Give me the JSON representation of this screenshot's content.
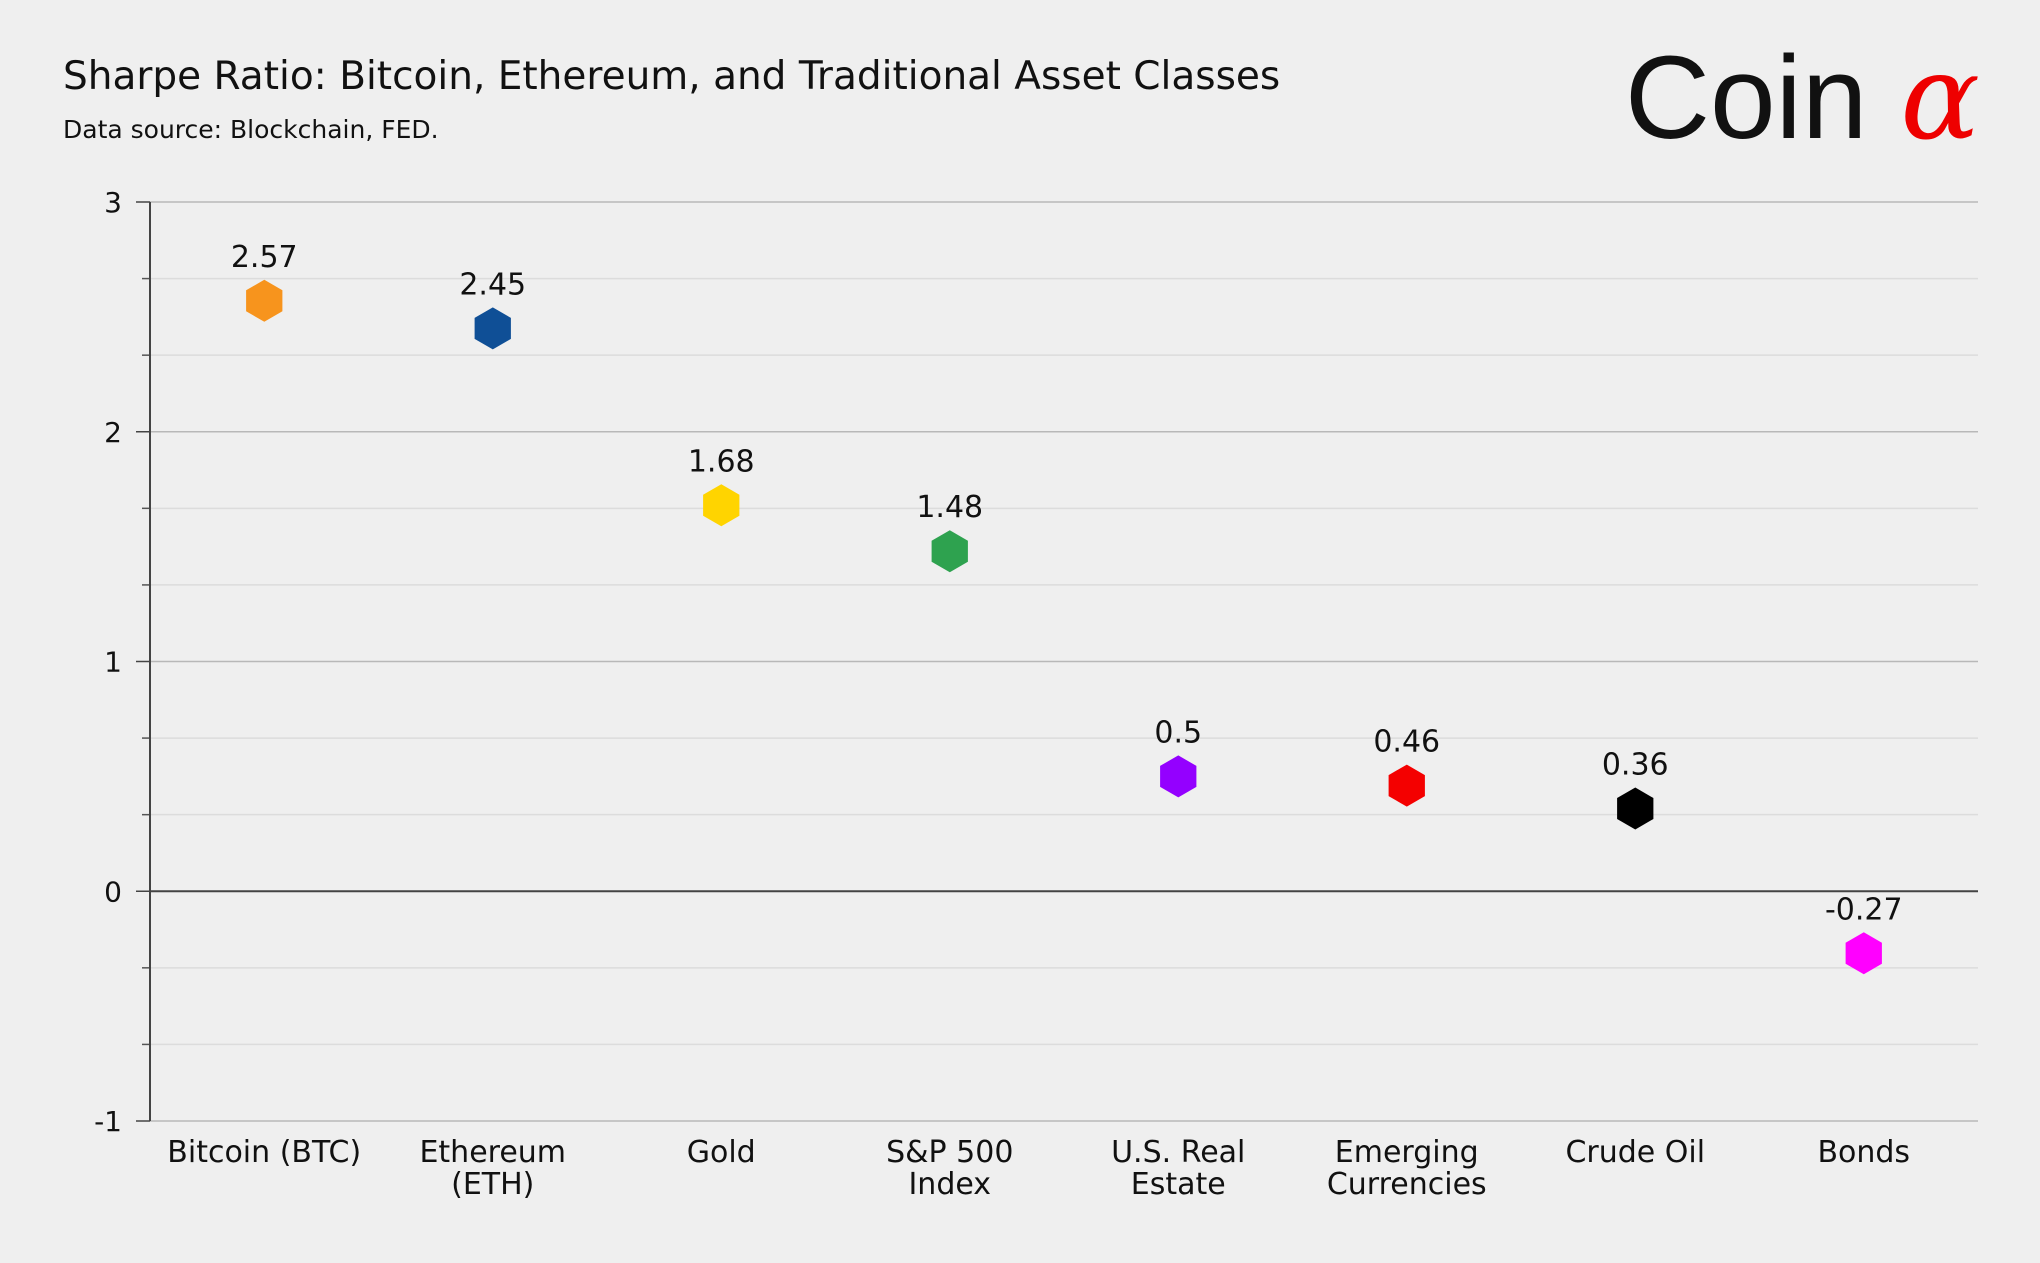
{
  "title": "Sharpe Ratio: Bitcoin, Ethereum, and Traditional Asset Classes",
  "subtitle": "Data source: Blockchain, FED.",
  "logo": {
    "text": "Coin",
    "symbol": "α",
    "symbol_color": "#ee0000"
  },
  "chart_data": {
    "type": "scatter",
    "marker": "hexagon",
    "categories": [
      [
        "Bitcoin (BTC)"
      ],
      [
        "Ethereum",
        "(ETH)"
      ],
      [
        "Gold"
      ],
      [
        "S&P 500",
        "Index"
      ],
      [
        "U.S. Real",
        "Estate"
      ],
      [
        "Emerging",
        "Currencies"
      ],
      [
        "Crude Oil"
      ],
      [
        "Bonds"
      ]
    ],
    "values": [
      2.57,
      2.45,
      1.68,
      1.48,
      0.5,
      0.46,
      0.36,
      -0.27
    ],
    "data_labels": [
      "2.57",
      "2.45",
      "1.68",
      "1.48",
      "0.5",
      "0.46",
      "0.36",
      "-0.27"
    ],
    "colors": [
      "#f7941d",
      "#0f4f96",
      "#ffd400",
      "#2ea24f",
      "#9400ff",
      "#f40000",
      "#000000",
      "#ff00ff"
    ],
    "ylim": [
      -1,
      3
    ],
    "yticks": [
      -1,
      0,
      1,
      2,
      3
    ],
    "ytick_labels": [
      "-1",
      "0",
      "1",
      "2",
      "3"
    ],
    "minor_step": 0.333333,
    "grid": true
  }
}
